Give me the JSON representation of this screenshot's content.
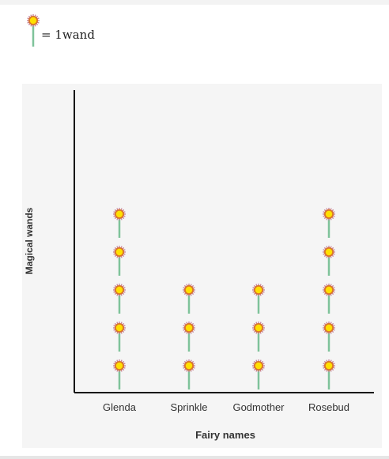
{
  "legend": {
    "icon": "wand-icon",
    "equals_label": "= 1wand"
  },
  "colors": {
    "panel_background": "#f5f5f5",
    "axis": "#111111",
    "wand_stick": "#7ec39a",
    "wand_star_core": "#ffe000",
    "wand_star_ring": "#d9742b",
    "wand_star_halo": "#c9859a"
  },
  "chart_data": {
    "type": "pictograph",
    "title": "",
    "xlabel": "Fairy names",
    "ylabel": "Magical wands",
    "unit_per_icon": 1,
    "categories": [
      "Glenda",
      "Sprinkle",
      "Godmother",
      "Rosebud"
    ],
    "values": [
      5,
      3,
      3,
      5
    ],
    "grid": false
  }
}
